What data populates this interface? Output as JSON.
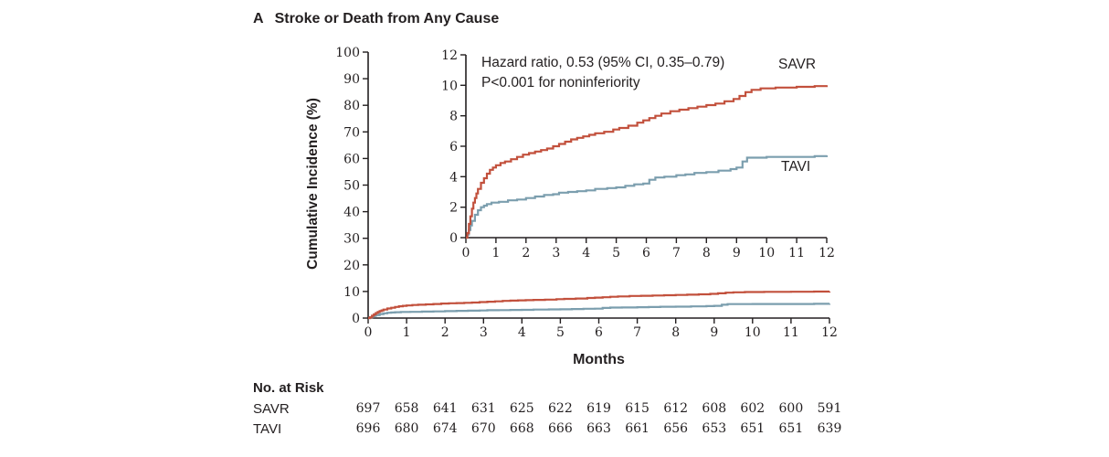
{
  "risk_table": {
    "title": "No. at Risk",
    "rows": [
      {
        "label": "SAVR",
        "values": [
          697,
          658,
          641,
          631,
          625,
          622,
          619,
          615,
          612,
          608,
          602,
          600,
          591
        ]
      },
      {
        "label": "TAVI",
        "values": [
          696,
          680,
          674,
          670,
          668,
          666,
          663,
          661,
          656,
          653,
          651,
          651,
          639
        ]
      }
    ]
  },
  "chart_data": {
    "type": "line",
    "subtype": "kaplan-meier-cumulative-incidence-step",
    "panel": "A",
    "title": "Stroke or Death from Any Cause",
    "xlabel": "Months",
    "ylabel": "Cumulative Incidence (%)",
    "annotation": {
      "line1": "Hazard ratio, 0.53 (95% CI, 0.35–0.79)",
      "line2": "P<0.001 for noninferiority"
    },
    "legend": {
      "savr": "SAVR",
      "tavi": "TAVI"
    },
    "main_axis": {
      "xlim": [
        0,
        12
      ],
      "ylim": [
        0,
        100
      ],
      "xticks": [
        0,
        1,
        2,
        3,
        4,
        5,
        6,
        7,
        8,
        9,
        10,
        11,
        12
      ],
      "yticks": [
        0,
        10,
        20,
        30,
        40,
        50,
        60,
        70,
        80,
        90,
        100
      ]
    },
    "inset_axis": {
      "xlim": [
        0,
        12
      ],
      "ylim": [
        0,
        12
      ],
      "xticks": [
        0,
        1,
        2,
        3,
        4,
        5,
        6,
        7,
        8,
        9,
        10,
        11,
        12
      ],
      "yticks": [
        0,
        2,
        4,
        6,
        8,
        10,
        12
      ]
    },
    "axis_color": "#231f20",
    "series": [
      {
        "name": "SAVR",
        "color": "#c2503c",
        "points": [
          [
            0,
            0
          ],
          [
            0.05,
            0.3
          ],
          [
            0.1,
            0.9
          ],
          [
            0.15,
            1.4
          ],
          [
            0.2,
            1.9
          ],
          [
            0.25,
            2.3
          ],
          [
            0.3,
            2.6
          ],
          [
            0.35,
            2.9
          ],
          [
            0.4,
            3.2
          ],
          [
            0.5,
            3.6
          ],
          [
            0.6,
            3.9
          ],
          [
            0.7,
            4.2
          ],
          [
            0.8,
            4.45
          ],
          [
            0.9,
            4.6
          ],
          [
            1,
            4.75
          ],
          [
            1.15,
            4.9
          ],
          [
            1.3,
            5
          ],
          [
            1.5,
            5.15
          ],
          [
            1.7,
            5.3
          ],
          [
            1.9,
            5.45
          ],
          [
            2.1,
            5.55
          ],
          [
            2.3,
            5.65
          ],
          [
            2.5,
            5.75
          ],
          [
            2.7,
            5.85
          ],
          [
            2.9,
            6
          ],
          [
            3.1,
            6.15
          ],
          [
            3.3,
            6.3
          ],
          [
            3.5,
            6.45
          ],
          [
            3.7,
            6.55
          ],
          [
            3.9,
            6.65
          ],
          [
            4.1,
            6.75
          ],
          [
            4.3,
            6.85
          ],
          [
            4.6,
            6.95
          ],
          [
            4.9,
            7.1
          ],
          [
            5.1,
            7.2
          ],
          [
            5.4,
            7.35
          ],
          [
            5.7,
            7.55
          ],
          [
            5.9,
            7.7
          ],
          [
            6.1,
            7.85
          ],
          [
            6.3,
            8
          ],
          [
            6.5,
            8.15
          ],
          [
            6.8,
            8.3
          ],
          [
            7.1,
            8.4
          ],
          [
            7.4,
            8.5
          ],
          [
            7.7,
            8.6
          ],
          [
            8,
            8.7
          ],
          [
            8.3,
            8.8
          ],
          [
            8.6,
            8.95
          ],
          [
            8.9,
            9.1
          ],
          [
            9.1,
            9.3
          ],
          [
            9.3,
            9.55
          ],
          [
            9.5,
            9.7
          ],
          [
            9.8,
            9.8
          ],
          [
            10.3,
            9.85
          ],
          [
            11,
            9.9
          ],
          [
            11.6,
            9.95
          ],
          [
            12,
            10
          ]
        ]
      },
      {
        "name": "TAVI",
        "color": "#7b9eae",
        "points": [
          [
            0,
            0
          ],
          [
            0.05,
            0.2
          ],
          [
            0.1,
            0.5
          ],
          [
            0.15,
            0.8
          ],
          [
            0.2,
            1.1
          ],
          [
            0.3,
            1.5
          ],
          [
            0.4,
            1.8
          ],
          [
            0.5,
            2
          ],
          [
            0.6,
            2.1
          ],
          [
            0.7,
            2.2
          ],
          [
            0.85,
            2.3
          ],
          [
            1.1,
            2.35
          ],
          [
            1.4,
            2.45
          ],
          [
            1.7,
            2.5
          ],
          [
            2,
            2.6
          ],
          [
            2.3,
            2.7
          ],
          [
            2.6,
            2.8
          ],
          [
            2.9,
            2.85
          ],
          [
            3.1,
            2.95
          ],
          [
            3.4,
            3
          ],
          [
            3.7,
            3.05
          ],
          [
            4,
            3.1
          ],
          [
            4.3,
            3.2
          ],
          [
            4.7,
            3.25
          ],
          [
            5,
            3.3
          ],
          [
            5.3,
            3.4
          ],
          [
            5.6,
            3.5
          ],
          [
            5.9,
            3.55
          ],
          [
            6.1,
            3.8
          ],
          [
            6.3,
            3.95
          ],
          [
            6.6,
            4
          ],
          [
            7,
            4.1
          ],
          [
            7.3,
            4.15
          ],
          [
            7.6,
            4.25
          ],
          [
            8,
            4.3
          ],
          [
            8.4,
            4.4
          ],
          [
            8.8,
            4.5
          ],
          [
            9,
            4.6
          ],
          [
            9.2,
            5
          ],
          [
            9.35,
            5.25
          ],
          [
            10,
            5.3
          ],
          [
            10.8,
            5.3
          ],
          [
            11.6,
            5.35
          ],
          [
            12,
            5.4
          ]
        ]
      }
    ]
  }
}
